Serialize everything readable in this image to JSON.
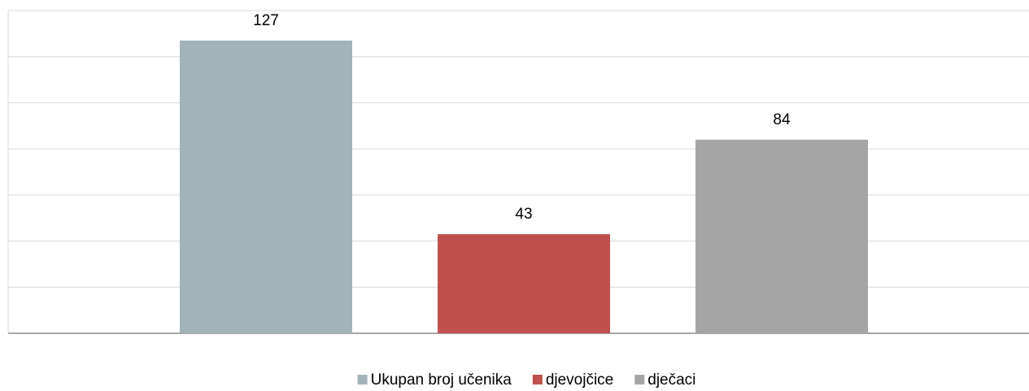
{
  "chart_data": {
    "type": "bar",
    "categories": [
      null
    ],
    "series": [
      {
        "name": "Ukupan broj učenika",
        "color": "#a2b3b9",
        "values": [
          127
        ]
      },
      {
        "name": "djevojčice",
        "color": "#c0504d",
        "values": [
          43
        ]
      },
      {
        "name": "dječaci",
        "color": "#a5a5a5",
        "values": [
          84
        ]
      }
    ],
    "ylim": [
      0,
      140
    ],
    "yticks": [
      0,
      20,
      40,
      60,
      80,
      100,
      120,
      140
    ],
    "grid": true,
    "legend": "bottom"
  }
}
